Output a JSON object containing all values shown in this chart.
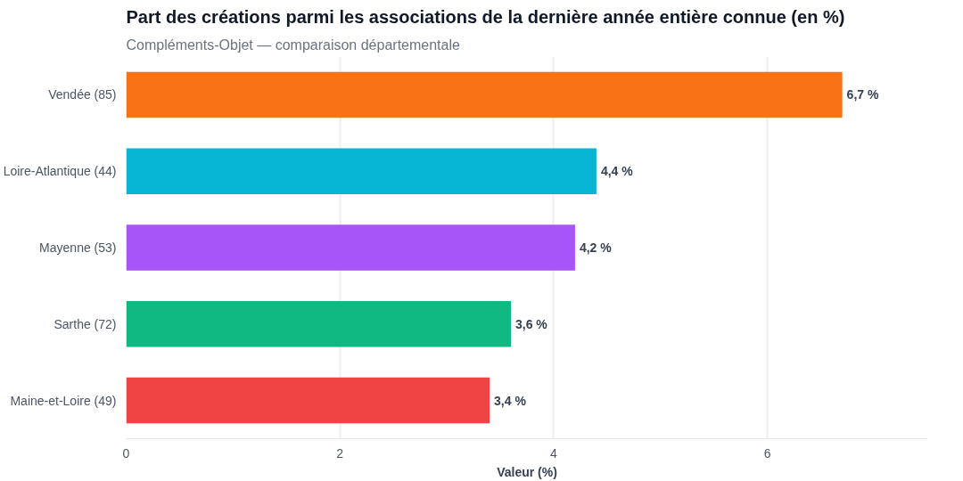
{
  "chart_data": {
    "type": "bar",
    "orientation": "horizontal",
    "title": "Part des créations parmi les associations de la dernière année entière connue (en %)",
    "subtitle": "Compléments-Objet — comparaison départementale",
    "xlabel": "Valeur (%)",
    "categories": [
      "Vendée (85)",
      "Loire-Atlantique (44)",
      "Mayenne (53)",
      "Sarthe (72)",
      "Maine-et-Loire (49)"
    ],
    "values": [
      6.7,
      4.4,
      4.2,
      3.6,
      3.4
    ],
    "colors": [
      "#f97316",
      "#06b6d4",
      "#a855f7",
      "#10b981",
      "#ef4444"
    ],
    "value_labels": [
      "6,7 %",
      "4,4 %",
      "4,2 %",
      "3,6 %",
      "3,4 %"
    ],
    "xlim": [
      0,
      7.5
    ],
    "xticks": [
      0,
      2,
      4,
      6
    ],
    "grid": "x"
  }
}
